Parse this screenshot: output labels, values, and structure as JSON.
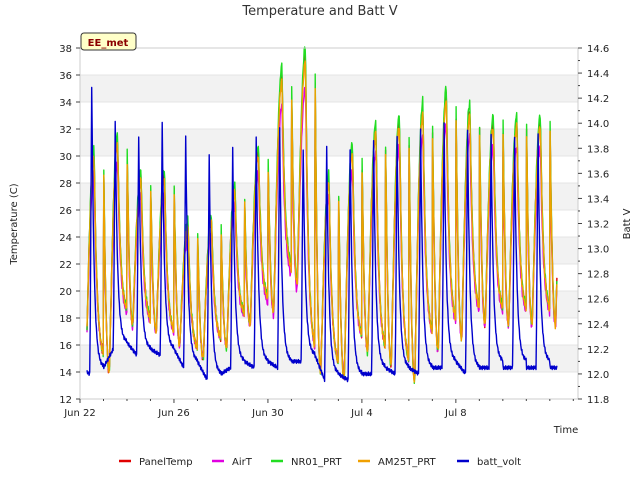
{
  "chart_data": {
    "type": "line",
    "title": "Temperature and Batt V",
    "station_label": "EE_met",
    "xlabel": "Time",
    "ylabel_left": "Temperature (C)",
    "ylabel_right": "Batt V",
    "xlim": [
      0,
      21.2
    ],
    "ylim_left": [
      12,
      38
    ],
    "ylim_right": [
      11.8,
      14.6
    ],
    "x_ticks": [
      {
        "x": 0,
        "label": "Jun 22"
      },
      {
        "x": 4,
        "label": "Jun 26"
      },
      {
        "x": 8,
        "label": "Jun 30"
      },
      {
        "x": 12,
        "label": "Jul 4"
      },
      {
        "x": 16,
        "label": "Jul 8"
      }
    ],
    "y_ticks_left": [
      "12",
      "14",
      "16",
      "18",
      "20",
      "22",
      "24",
      "26",
      "28",
      "30",
      "32",
      "34",
      "36",
      "38"
    ],
    "y_ticks_right": [
      "11.8",
      "12.0",
      "12.2",
      "12.4",
      "12.6",
      "12.8",
      "13.0",
      "13.2",
      "13.4",
      "13.6",
      "13.8",
      "14.0",
      "14.2",
      "14.4",
      "14.6"
    ],
    "grid": "horizontal bands",
    "legend_position": "bottom",
    "daily": {
      "days": [
        0,
        1,
        2,
        3,
        4,
        5,
        6,
        7,
        8,
        9,
        10,
        11,
        12,
        13,
        14,
        15,
        16,
        17
      ],
      "temp_max": [
        30.2,
        31.2,
        28.5,
        28.6,
        25.0,
        25.3,
        27.6,
        30.3,
        36.0,
        37.5,
        28.3,
        30.5,
        32.0,
        32.6,
        33.5,
        34.5,
        33.4,
        32.5
      ],
      "temp_min": [
        13.5,
        14.0,
        17.5,
        17.0,
        16.0,
        15.0,
        15.8,
        17.5,
        18.5,
        20.5,
        14.0,
        13.5,
        15.5,
        14.5,
        13.3,
        15.5,
        16.5,
        17.5
      ],
      "batt_max": [
        14.3,
        14.0,
        13.9,
        14.0,
        13.9,
        13.75,
        13.8,
        13.9,
        13.95,
        13.8,
        13.8,
        13.8,
        13.85,
        13.9,
        13.95,
        14.0,
        13.95,
        13.9
      ],
      "batt_min": [
        12.0,
        12.2,
        12.15,
        12.15,
        12.05,
        11.95,
        12.05,
        12.05,
        12.05,
        12.1,
        11.95,
        11.95,
        12.0,
        12.0,
        12.0,
        12.05,
        12.0,
        12.05
      ]
    },
    "series": [
      {
        "name": "PanelTemp",
        "color": "#e00000",
        "axis": "left",
        "offset": 0.0,
        "scale": 1.0
      },
      {
        "name": "AirT",
        "color": "#e000e0",
        "axis": "left",
        "offset": -0.8,
        "scale": 0.93
      },
      {
        "name": "NR01_PRT",
        "color": "#22dd22",
        "axis": "left",
        "offset": 0.3,
        "scale": 1.02
      },
      {
        "name": "AM25T_PRT",
        "color": "#f0a000",
        "axis": "left",
        "offset": -0.2,
        "scale": 0.99
      },
      {
        "name": "batt_volt",
        "color": "#0000cc",
        "axis": "right"
      }
    ]
  }
}
